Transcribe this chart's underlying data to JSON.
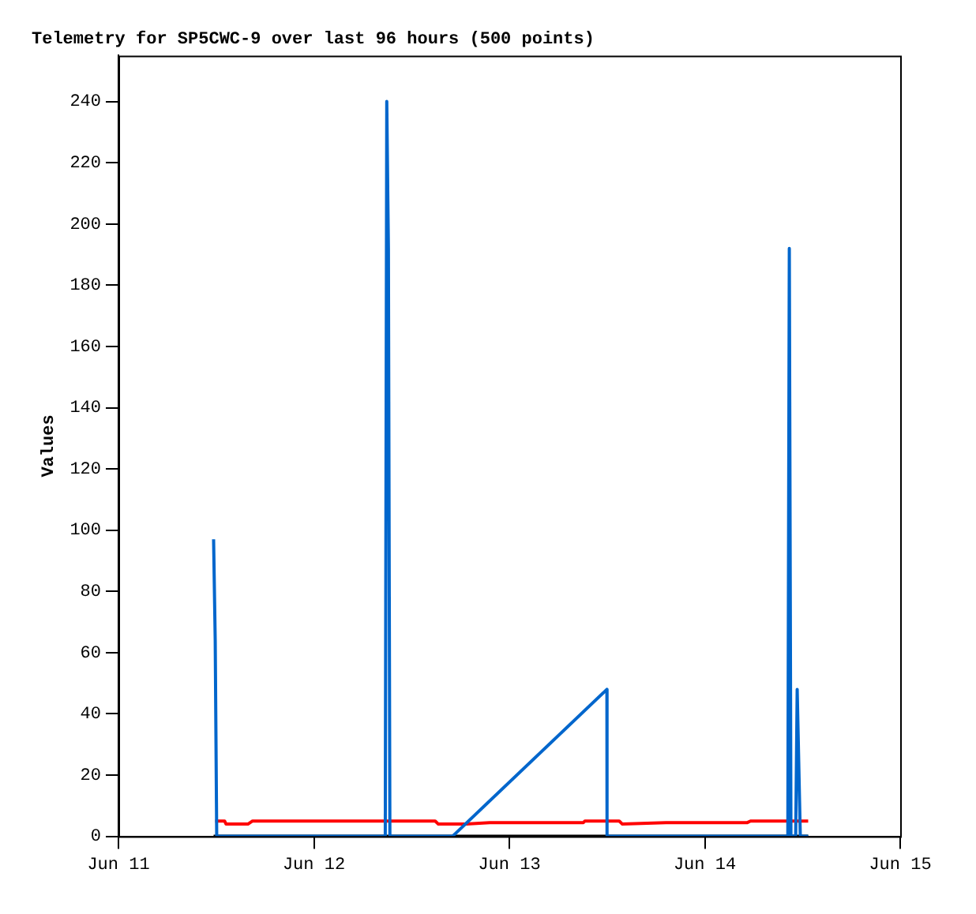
{
  "chart_data": {
    "type": "line",
    "title": "Telemetry for SP5CWC-9 over last 96 hours (500 points)",
    "ylabel": "Values",
    "xlim": [
      "--06-11",
      "--06-15"
    ],
    "xticks": [
      {
        "value": "--06-11",
        "label": "Jun 11"
      },
      {
        "value": "--06-12",
        "label": "Jun 12"
      },
      {
        "value": "--06-13",
        "label": "Jun 13"
      },
      {
        "value": "--06-14",
        "label": "Jun 14"
      },
      {
        "value": "--06-15",
        "label": "Jun 15"
      }
    ],
    "ylim": [
      0,
      255
    ],
    "yticks": [
      0,
      20,
      40,
      60,
      80,
      100,
      120,
      140,
      160,
      180,
      200,
      220,
      240
    ],
    "grid": false,
    "legend": false,
    "marker": "none",
    "line_style": "solid",
    "series": [
      {
        "color": "#000000",
        "x": [
          "--06-11T11:41",
          "--06-14T12:42"
        ],
        "values": [
          0,
          0
        ]
      },
      {
        "color": "#ff0000",
        "x": [
          "--06-11T11:53",
          "--06-11T13:02",
          "--06-11T13:13",
          "--06-11T15:54",
          "--06-11T16:28",
          "--06-12T14:54",
          "--06-12T15:17",
          "--06-12T18:43",
          "--06-12T21:36",
          "--06-13T09:06",
          "--06-13T09:17",
          "--06-13T13:30",
          "--06-13T13:53",
          "--06-13T19:15",
          "--06-14T05:14",
          "--06-14T05:37",
          "--06-14T12:42"
        ],
        "values": [
          5,
          5,
          4,
          4,
          5,
          5,
          4,
          4,
          4.5,
          4.5,
          5,
          5,
          4,
          4.5,
          4.5,
          5,
          5
        ]
      },
      {
        "color": "#0066cc",
        "x": [
          "--06-11T11:41",
          "--06-11T11:53",
          "--06-11T12:04",
          "--06-12T08:46",
          "--06-12T08:57",
          "--06-12T09:09",
          "--06-12T09:20",
          "--06-12T17:01",
          "--06-13T11:59",
          "--06-13T12:00",
          "--06-14T10:12",
          "--06-14T10:23",
          "--06-14T10:35",
          "--06-14T11:10",
          "--06-14T11:21",
          "--06-14T11:32",
          "--06-14T11:44",
          "--06-14T12:42"
        ],
        "values": [
          97,
          64,
          0,
          0,
          240,
          192,
          0,
          0,
          48,
          0,
          0,
          192,
          0,
          0,
          48,
          25,
          0,
          0
        ]
      }
    ]
  }
}
